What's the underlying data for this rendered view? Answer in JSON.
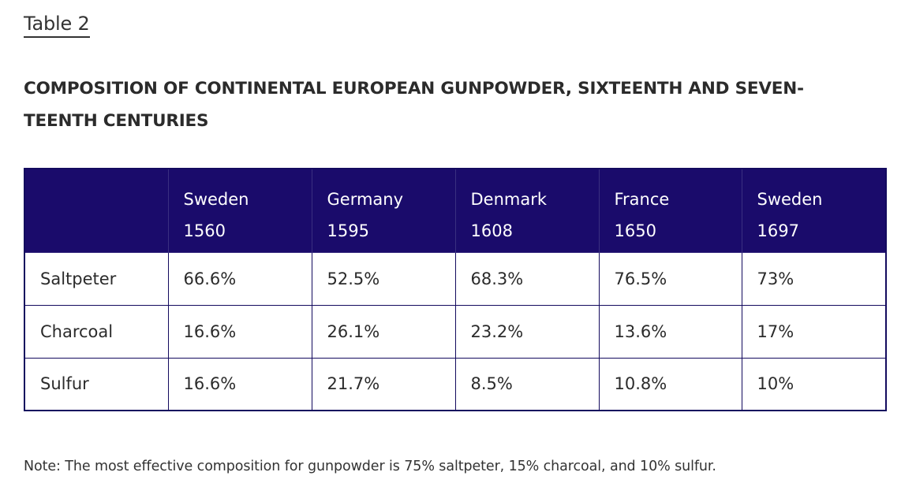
{
  "table_label": "Table 2",
  "title_lines": [
    "COMPOSITION OF CONTINENTAL EUROPEAN GUNPOWDER, SIXTEENTH AND SEVEN-",
    "TEENTH CENTURIES"
  ],
  "colors": {
    "header_background": "#1a0b6b",
    "header_text": "#ffffff",
    "border": "#130a5e",
    "text": "#2b2b2b"
  },
  "table": {
    "corner": "",
    "columns": [
      {
        "country": "Sweden",
        "year": "1560"
      },
      {
        "country": "Germany",
        "year": "1595"
      },
      {
        "country": "Denmark",
        "year": "1608"
      },
      {
        "country": "France",
        "year": "1650"
      },
      {
        "country": "Sweden",
        "year": "1697"
      }
    ],
    "rows": [
      {
        "label": "Saltpeter",
        "values": [
          "66.6%",
          "52.5%",
          "68.3%",
          "76.5%",
          "73%"
        ]
      },
      {
        "label": "Charcoal",
        "values": [
          "16.6%",
          "26.1%",
          "23.2%",
          "13.6%",
          "17%"
        ]
      },
      {
        "label": "Sulfur",
        "values": [
          "16.6%",
          "21.7%",
          "8.5%",
          "10.8%",
          "10%"
        ]
      }
    ]
  },
  "note": "Note: The most effective composition for gunpowder is 75% saltpeter, 15% charcoal, and 10% sulfur."
}
